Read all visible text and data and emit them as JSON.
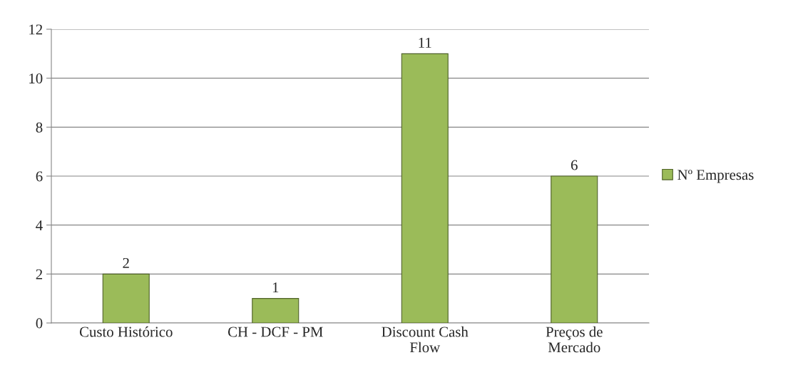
{
  "chart_data": {
    "type": "bar",
    "categories": [
      "Custo Histórico",
      "CH - DCF - PM",
      "Discount Cash Flow",
      "Preços de Mercado"
    ],
    "series": [
      {
        "name": "Nº Empresas",
        "color": "#9bbb59",
        "values": [
          2,
          1,
          11,
          6
        ]
      }
    ],
    "ylim": [
      0,
      12
    ],
    "yticks": [
      0,
      2,
      4,
      6,
      8,
      10,
      12
    ],
    "grid": "y",
    "legend": "right",
    "data_labels": true
  }
}
